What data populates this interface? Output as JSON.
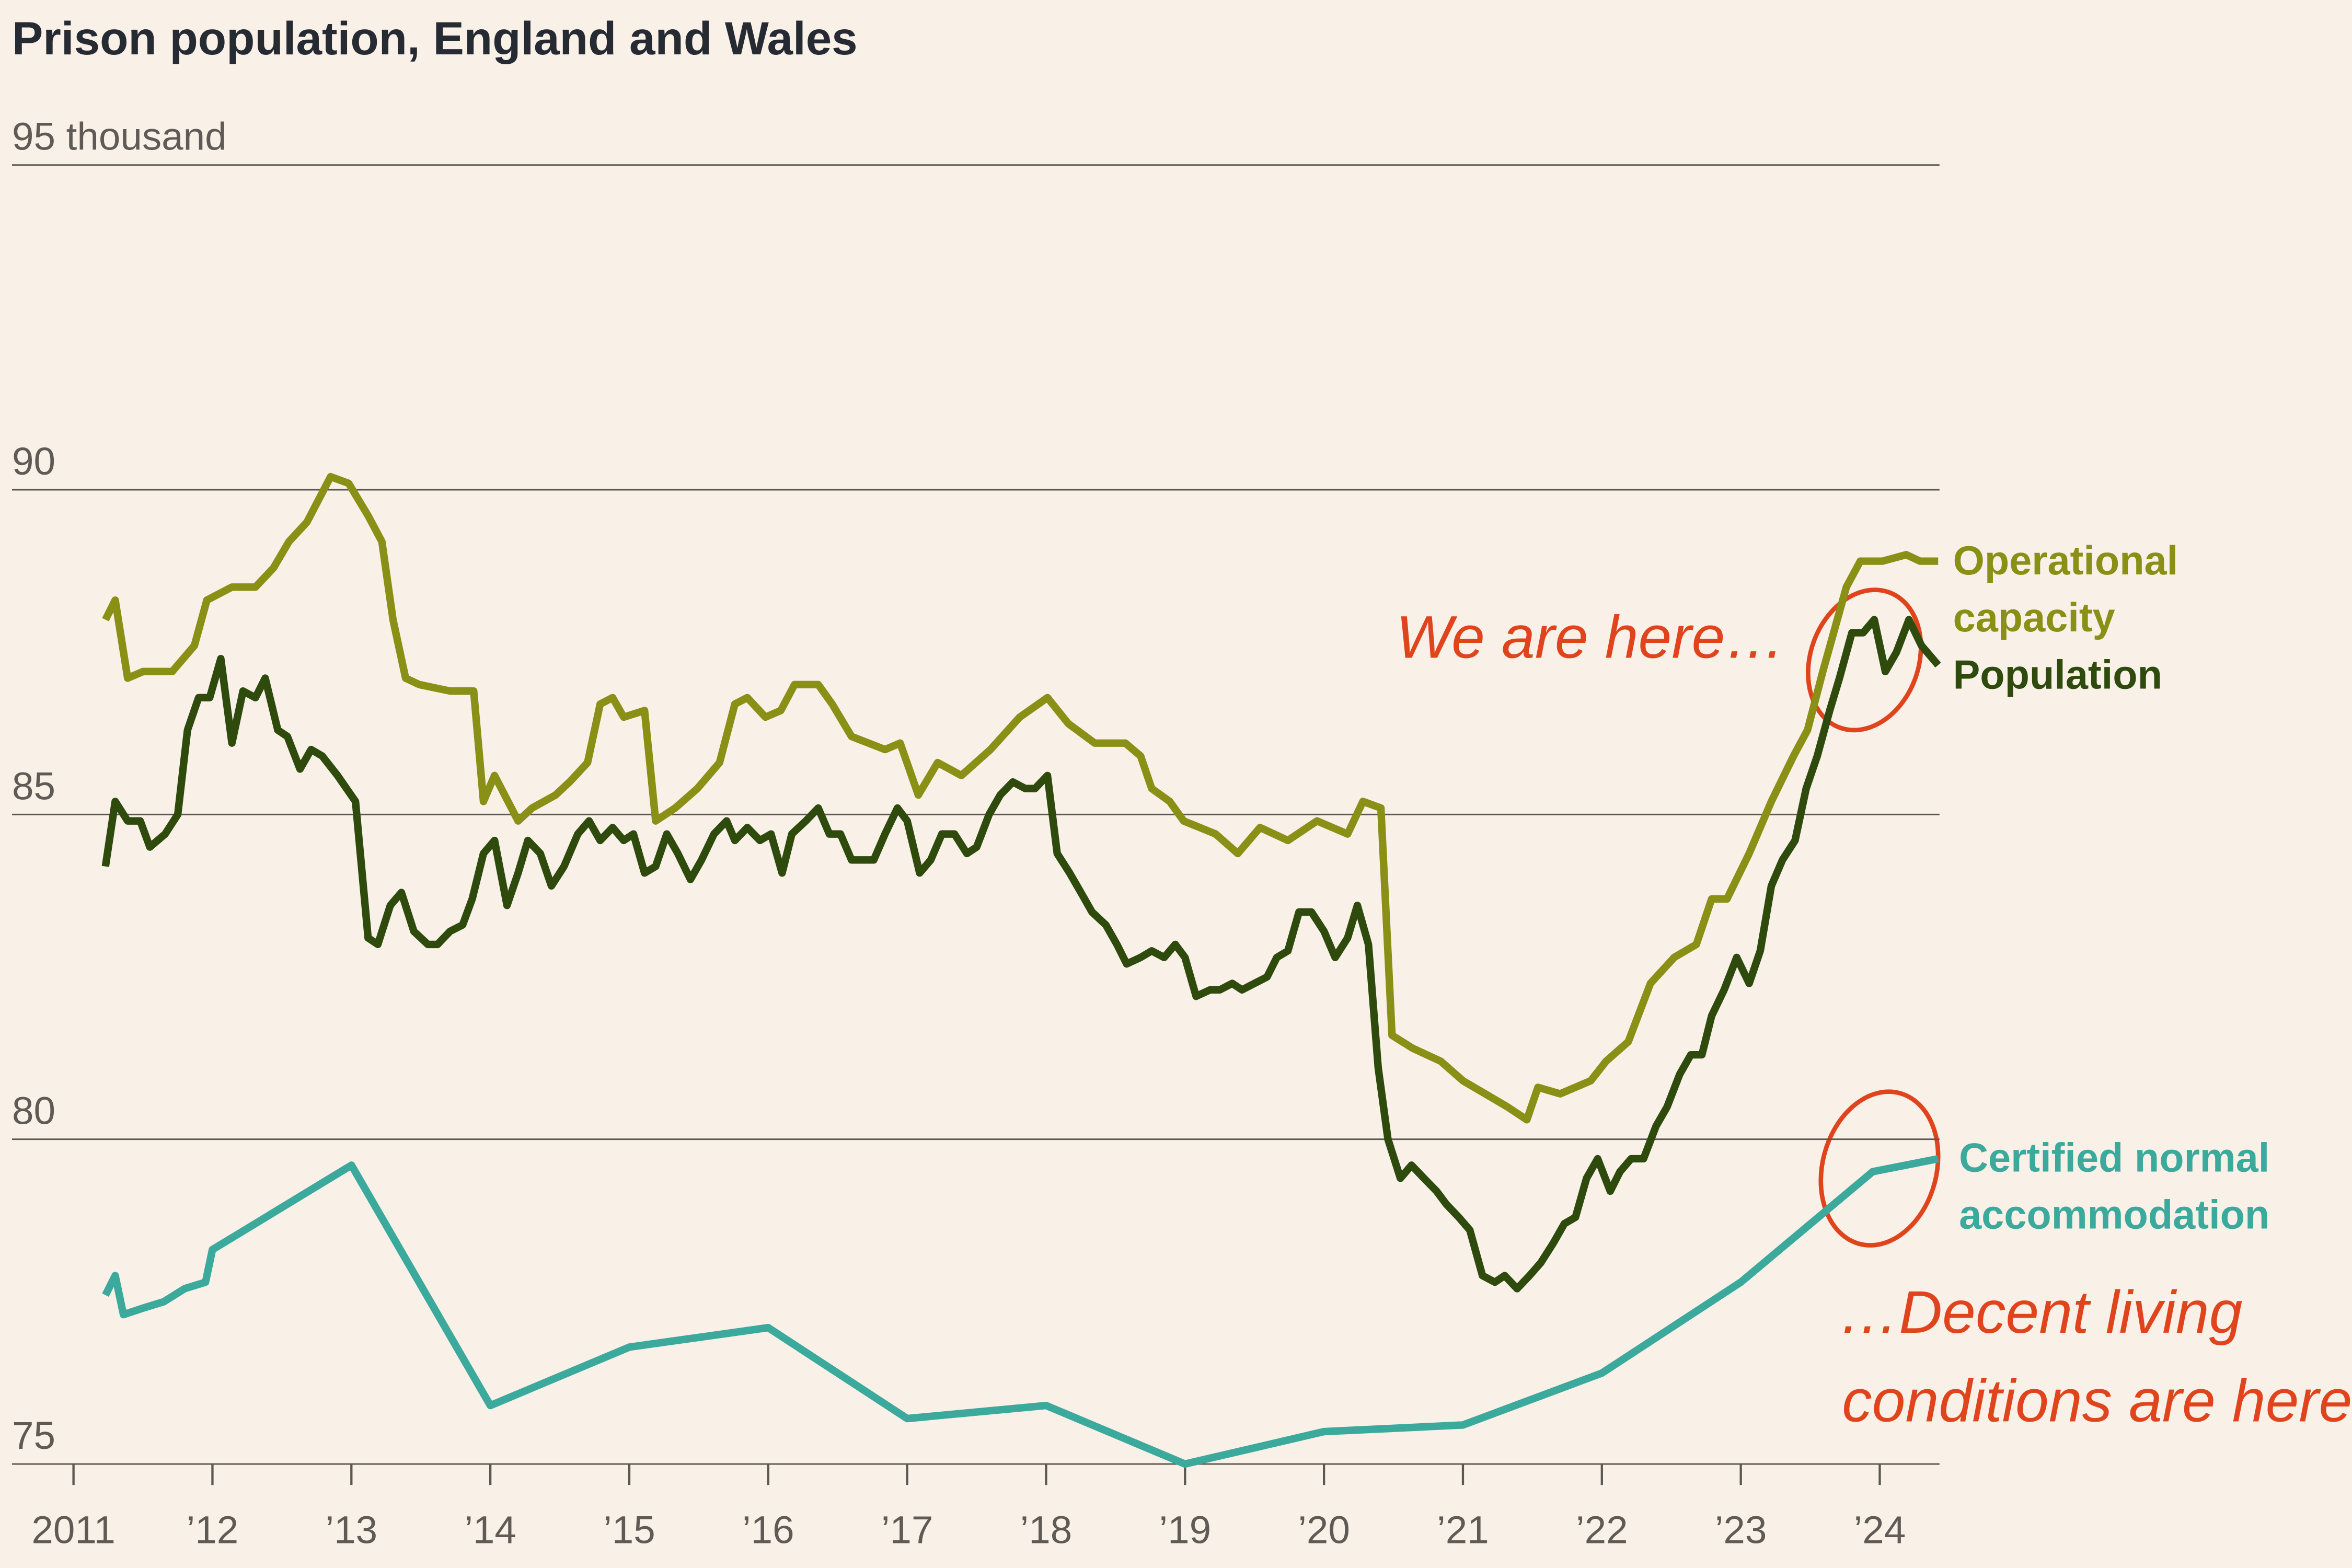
{
  "chart_data": {
    "type": "line",
    "title": "Prison population, England and Wales",
    "xlim": [
      2011,
      2024.43
    ],
    "xticks": [
      {
        "value": 2011,
        "label": "2011"
      },
      {
        "value": 2012,
        "label": "’12"
      },
      {
        "value": 2013,
        "label": "’13"
      },
      {
        "value": 2014,
        "label": "’14"
      },
      {
        "value": 2015,
        "label": "’15"
      },
      {
        "value": 2016,
        "label": "’16"
      },
      {
        "value": 2017,
        "label": "’17"
      },
      {
        "value": 2018,
        "label": "’18"
      },
      {
        "value": 2019,
        "label": "’19"
      },
      {
        "value": 2020,
        "label": "’20"
      },
      {
        "value": 2021,
        "label": "’21"
      },
      {
        "value": 2022,
        "label": "’22"
      },
      {
        "value": 2023,
        "label": "’23"
      },
      {
        "value": 2024,
        "label": "’24"
      }
    ],
    "ylim": [
      75,
      95
    ],
    "yticks": [
      75,
      80,
      85,
      90,
      {
        "value": 95,
        "label": "95 thousand"
      }
    ],
    "grid": true,
    "annotations": [
      "We are here…",
      "…Decent living",
      "conditions are here"
    ],
    "series": [
      {
        "name": "Operational capacity",
        "color": "#8a8f15",
        "x": [
          2011.23,
          2011.3,
          2011.39,
          2011.5,
          2011.71,
          2011.87,
          2011.96,
          2012.14,
          2012.31,
          2012.44,
          2012.55,
          2012.68,
          2012.85,
          2012.98,
          2013.12,
          2013.22,
          2013.3,
          2013.39,
          2013.49,
          2013.71,
          2013.88,
          2013.95,
          2014.03,
          2014.2,
          2014.3,
          2014.47,
          2014.57,
          2014.7,
          2014.79,
          2014.88,
          2014.96,
          2015.11,
          2015.19,
          2015.33,
          2015.49,
          2015.65,
          2015.76,
          2015.85,
          2015.98,
          2016.09,
          2016.19,
          2016.36,
          2016.46,
          2016.6,
          2016.84,
          2016.95,
          2017.08,
          2017.22,
          2017.39,
          2017.6,
          2017.81,
          2018.01,
          2018.16,
          2018.35,
          2018.57,
          2018.68,
          2018.76,
          2018.89,
          2018.99,
          2019.22,
          2019.38,
          2019.54,
          2019.74,
          2019.95,
          2020.17,
          2020.28,
          2020.41,
          2020.49,
          2020.64,
          2020.84,
          2021.0,
          2021.16,
          2021.32,
          2021.46,
          2021.54,
          2021.7,
          2021.92,
          2022.03,
          2022.19,
          2022.35,
          2022.52,
          2022.68,
          2022.79,
          2022.9,
          2023.06,
          2023.22,
          2023.38,
          2023.48,
          2023.59,
          2023.76,
          2023.86,
          2024.02,
          2024.19,
          2024.29,
          2024.42
        ],
        "values": [
          88.0,
          88.3,
          87.1,
          87.2,
          87.2,
          87.6,
          88.3,
          88.5,
          88.5,
          88.8,
          89.2,
          89.5,
          90.2,
          90.1,
          89.6,
          89.2,
          88.0,
          87.1,
          87.0,
          86.9,
          86.9,
          85.2,
          85.6,
          84.9,
          85.1,
          85.3,
          85.5,
          85.8,
          86.7,
          86.8,
          86.5,
          86.6,
          84.9,
          85.1,
          85.4,
          85.8,
          86.7,
          86.8,
          86.5,
          86.6,
          87.0,
          87.0,
          86.7,
          86.2,
          86.0,
          86.1,
          85.3,
          85.8,
          85.6,
          86.0,
          86.5,
          86.8,
          86.4,
          86.1,
          86.1,
          85.9,
          85.4,
          85.2,
          84.9,
          84.7,
          84.4,
          84.8,
          84.6,
          84.9,
          84.7,
          85.2,
          85.1,
          81.6,
          81.4,
          81.2,
          80.9,
          80.7,
          80.5,
          80.3,
          80.8,
          80.7,
          80.9,
          81.2,
          81.5,
          82.4,
          82.8,
          83.0,
          83.7,
          83.7,
          84.4,
          85.2,
          85.9,
          86.3,
          87.2,
          88.5,
          88.9,
          88.9,
          89.0,
          88.9,
          88.9
        ]
      },
      {
        "name": "Population",
        "color": "#2e4a0d",
        "x": [
          2011.23,
          2011.3,
          2011.39,
          2011.48,
          2011.55,
          2011.66,
          2011.75,
          2011.82,
          2011.9,
          2011.98,
          2012.06,
          2012.14,
          2012.22,
          2012.31,
          2012.38,
          2012.47,
          2012.54,
          2012.63,
          2012.71,
          2012.79,
          2012.9,
          2013.03,
          2013.12,
          2013.19,
          2013.28,
          2013.36,
          2013.45,
          2013.55,
          2013.62,
          2013.71,
          2013.8,
          2013.87,
          2013.95,
          2014.03,
          2014.12,
          2014.2,
          2014.27,
          2014.36,
          2014.44,
          2014.53,
          2014.63,
          2014.71,
          2014.79,
          2014.88,
          2014.96,
          2015.03,
          2015.11,
          2015.19,
          2015.27,
          2015.35,
          2015.44,
          2015.52,
          2015.61,
          2015.7,
          2015.76,
          2015.85,
          2015.94,
          2016.02,
          2016.1,
          2016.17,
          2016.27,
          2016.36,
          2016.44,
          2016.52,
          2016.6,
          2016.76,
          2016.84,
          2016.93,
          2017.0,
          2017.09,
          2017.17,
          2017.25,
          2017.34,
          2017.43,
          2017.5,
          2017.59,
          2017.67,
          2017.76,
          2017.85,
          2017.92,
          2018.01,
          2018.08,
          2018.17,
          2018.25,
          2018.33,
          2018.43,
          2018.51,
          2018.58,
          2018.68,
          2018.76,
          2018.85,
          2018.93,
          2019.0,
          2019.08,
          2019.18,
          2019.25,
          2019.34,
          2019.41,
          2019.5,
          2019.59,
          2019.66,
          2019.74,
          2019.82,
          2019.91,
          2020.0,
          2020.08,
          2020.17,
          2020.24,
          2020.32,
          2020.39,
          2020.46,
          2020.55,
          2020.63,
          2020.72,
          2020.81,
          2020.88,
          2020.97,
          2021.05,
          2021.14,
          2021.23,
          2021.3,
          2021.39,
          2021.48,
          2021.56,
          2021.65,
          2021.73,
          2021.81,
          2021.89,
          2021.97,
          2022.06,
          2022.13,
          2022.21,
          2022.3,
          2022.39,
          2022.47,
          2022.56,
          2022.64,
          2022.72,
          2022.79,
          2022.88,
          2022.97,
          2023.06,
          2023.14,
          2023.22,
          2023.3,
          2023.39,
          2023.47,
          2023.55,
          2023.64,
          2023.71,
          2023.8,
          2023.88,
          2023.96,
          2024.04,
          2024.12,
          2024.21,
          2024.3,
          2024.42
        ],
        "values": [
          84.2,
          85.2,
          84.9,
          84.9,
          84.5,
          84.7,
          85.0,
          86.3,
          86.8,
          86.8,
          87.4,
          86.1,
          86.9,
          86.8,
          87.1,
          86.3,
          86.2,
          85.7,
          86.0,
          85.9,
          85.6,
          85.2,
          83.1,
          83.0,
          83.6,
          83.8,
          83.2,
          83.0,
          83.0,
          83.2,
          83.3,
          83.7,
          84.4,
          84.6,
          83.6,
          84.1,
          84.6,
          84.4,
          83.9,
          84.2,
          84.7,
          84.9,
          84.6,
          84.8,
          84.6,
          84.7,
          84.1,
          84.2,
          84.7,
          84.4,
          84.0,
          84.3,
          84.7,
          84.9,
          84.6,
          84.8,
          84.6,
          84.7,
          84.1,
          84.7,
          84.9,
          85.1,
          84.7,
          84.7,
          84.3,
          84.3,
          84.7,
          85.1,
          84.9,
          84.1,
          84.3,
          84.7,
          84.7,
          84.4,
          84.5,
          85.0,
          85.3,
          85.5,
          85.4,
          85.4,
          85.6,
          84.4,
          84.1,
          83.8,
          83.5,
          83.3,
          83.0,
          82.7,
          82.8,
          82.9,
          82.8,
          83.0,
          82.8,
          82.2,
          82.3,
          82.3,
          82.4,
          82.3,
          82.4,
          82.5,
          82.8,
          82.9,
          83.5,
          83.5,
          83.2,
          82.8,
          83.1,
          83.6,
          83.0,
          81.1,
          80.0,
          79.4,
          79.6,
          79.4,
          79.2,
          79.0,
          78.8,
          78.6,
          77.9,
          77.8,
          77.9,
          77.7,
          77.9,
          78.1,
          78.4,
          78.7,
          78.8,
          79.4,
          79.7,
          79.2,
          79.5,
          79.7,
          79.7,
          80.2,
          80.5,
          81.0,
          81.3,
          81.3,
          81.9,
          82.3,
          82.8,
          82.4,
          82.9,
          83.9,
          84.3,
          84.6,
          85.4,
          85.9,
          86.6,
          87.1,
          87.8,
          87.8,
          88.0,
          87.2,
          87.5,
          88.0,
          87.6,
          87.3
        ]
      },
      {
        "name": "Certified normal accommodation",
        "color": "#3ba99c",
        "x": [
          2011.23,
          2011.3,
          2011.36,
          2011.5,
          2011.65,
          2011.8,
          2011.95,
          2012.0,
          2013.0,
          2014.0,
          2015.0,
          2016.0,
          2017.0,
          2018.0,
          2019.0,
          2020.0,
          2021.0,
          2022.0,
          2023.0,
          2023.95,
          2024.42
        ],
        "values": [
          77.6,
          77.9,
          77.3,
          77.4,
          77.5,
          77.7,
          77.8,
          78.3,
          79.6,
          75.9,
          76.8,
          77.1,
          75.7,
          75.9,
          75.0,
          75.5,
          75.6,
          76.4,
          77.8,
          79.5,
          79.7
        ]
      }
    ]
  }
}
